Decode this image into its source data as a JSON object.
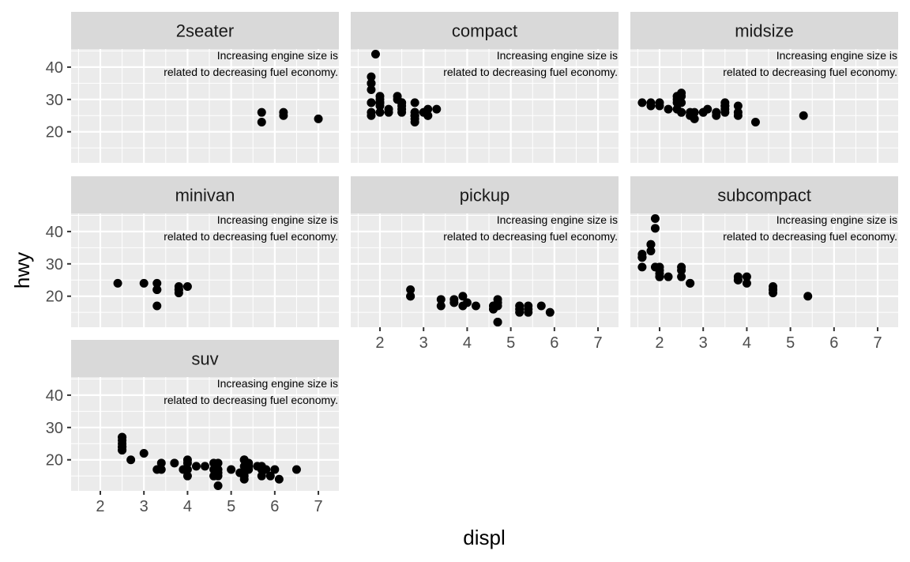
{
  "chart_data": {
    "type": "scatter",
    "xlabel": "displ",
    "ylabel": "hwy",
    "xlim": [
      1.33,
      7.47
    ],
    "ylim": [
      10.4,
      45.6
    ],
    "x_ticks": [
      2,
      3,
      4,
      5,
      6,
      7
    ],
    "y_ticks": [
      20,
      30,
      40
    ],
    "grid": true,
    "annotation": {
      "line1": "Increasing engine size is",
      "line2": "related to decreasing fuel economy."
    },
    "colors": {
      "panel_bg": "#ebebeb",
      "strip_bg": "#d9d9d9",
      "grid": "#ffffff",
      "point": "#000000"
    },
    "panels": [
      {
        "name": "2seater",
        "points": [
          [
            5.7,
            26
          ],
          [
            5.7,
            23
          ],
          [
            6.2,
            26
          ],
          [
            6.2,
            25
          ],
          [
            7.0,
            24
          ]
        ]
      },
      {
        "name": "compact",
        "points": [
          [
            1.8,
            29
          ],
          [
            1.8,
            29
          ],
          [
            2.0,
            31
          ],
          [
            2.0,
            30
          ],
          [
            2.8,
            26
          ],
          [
            2.8,
            26
          ],
          [
            3.1,
            27
          ],
          [
            1.8,
            26
          ],
          [
            1.8,
            25
          ],
          [
            2.0,
            28
          ],
          [
            2.0,
            29
          ],
          [
            2.8,
            25
          ],
          [
            2.8,
            25
          ],
          [
            3.1,
            25
          ],
          [
            3.1,
            25
          ],
          [
            2.2,
            26
          ],
          [
            2.2,
            27
          ],
          [
            2.4,
            30
          ],
          [
            2.4,
            31
          ],
          [
            3.0,
            26
          ],
          [
            1.8,
            33
          ],
          [
            1.8,
            35
          ],
          [
            1.8,
            37
          ],
          [
            1.8,
            35
          ],
          [
            2.5,
            29
          ],
          [
            2.5,
            26
          ],
          [
            2.5,
            29
          ],
          [
            2.5,
            29
          ],
          [
            2.5,
            27
          ],
          [
            1.9,
            44
          ],
          [
            2.0,
            29
          ],
          [
            2.0,
            26
          ],
          [
            2.0,
            29
          ],
          [
            2.5,
            28
          ],
          [
            2.8,
            29
          ],
          [
            2.8,
            23
          ],
          [
            2.8,
            24
          ],
          [
            2.8,
            25
          ],
          [
            3.3,
            27
          ]
        ]
      },
      {
        "name": "midsize",
        "points": [
          [
            2.8,
            26
          ],
          [
            3.1,
            27
          ],
          [
            4.2,
            23
          ],
          [
            1.6,
            29
          ],
          [
            1.8,
            29
          ],
          [
            1.8,
            28
          ],
          [
            2.0,
            29
          ],
          [
            2.0,
            28
          ],
          [
            2.4,
            27
          ],
          [
            2.4,
            30
          ],
          [
            2.4,
            31
          ],
          [
            2.5,
            32
          ],
          [
            2.5,
            31
          ],
          [
            2.5,
            26
          ],
          [
            2.5,
            29
          ],
          [
            2.7,
            26
          ],
          [
            2.7,
            25
          ],
          [
            3.0,
            26
          ],
          [
            3.3,
            25
          ],
          [
            3.5,
            28
          ],
          [
            3.5,
            29
          ],
          [
            3.5,
            26
          ],
          [
            3.5,
            27
          ],
          [
            3.8,
            26
          ],
          [
            3.8,
            28
          ],
          [
            3.8,
            25
          ],
          [
            3.3,
            26
          ],
          [
            2.8,
            24
          ],
          [
            2.2,
            27
          ],
          [
            2.5,
            26
          ],
          [
            5.3,
            25
          ],
          [
            2.4,
            29
          ],
          [
            3.0,
            26
          ],
          [
            3.5,
            28
          ]
        ]
      },
      {
        "name": "minivan",
        "points": [
          [
            2.4,
            24
          ],
          [
            3.0,
            24
          ],
          [
            3.3,
            22
          ],
          [
            3.3,
            24
          ],
          [
            3.3,
            22
          ],
          [
            3.3,
            17
          ],
          [
            3.8,
            22
          ],
          [
            3.8,
            21
          ],
          [
            3.8,
            23
          ],
          [
            3.8,
            22
          ],
          [
            4.0,
            23
          ]
        ]
      },
      {
        "name": "pickup",
        "points": [
          [
            2.7,
            20
          ],
          [
            2.7,
            20
          ],
          [
            2.7,
            22
          ],
          [
            3.4,
            17
          ],
          [
            3.4,
            19
          ],
          [
            3.7,
            18
          ],
          [
            3.7,
            19
          ],
          [
            3.9,
            17
          ],
          [
            3.9,
            20
          ],
          [
            4.2,
            17
          ],
          [
            4.6,
            17
          ],
          [
            4.6,
            16
          ],
          [
            4.7,
            17
          ],
          [
            4.7,
            12
          ],
          [
            4.7,
            19
          ],
          [
            4.7,
            18
          ],
          [
            4.7,
            12
          ],
          [
            5.2,
            17
          ],
          [
            5.2,
            15
          ],
          [
            5.4,
            17
          ],
          [
            5.4,
            15
          ],
          [
            5.4,
            16
          ],
          [
            5.7,
            17
          ],
          [
            5.9,
            15
          ],
          [
            4.0,
            18
          ],
          [
            4.6,
            17
          ],
          [
            4.6,
            16
          ],
          [
            5.2,
            16
          ]
        ]
      },
      {
        "name": "subcompact",
        "points": [
          [
            1.6,
            33
          ],
          [
            1.6,
            32
          ],
          [
            1.6,
            32
          ],
          [
            1.6,
            29
          ],
          [
            1.6,
            32
          ],
          [
            1.8,
            34
          ],
          [
            1.8,
            36
          ],
          [
            1.8,
            36
          ],
          [
            2.0,
            29
          ],
          [
            1.9,
            44
          ],
          [
            1.9,
            41
          ],
          [
            1.9,
            29
          ],
          [
            2.0,
            26
          ],
          [
            2.0,
            28
          ],
          [
            2.0,
            27
          ],
          [
            2.0,
            26
          ],
          [
            2.2,
            26
          ],
          [
            2.5,
            26
          ],
          [
            2.5,
            29
          ],
          [
            2.5,
            28
          ],
          [
            2.7,
            24
          ],
          [
            2.7,
            24
          ],
          [
            3.8,
            26
          ],
          [
            3.8,
            25
          ],
          [
            3.8,
            25
          ],
          [
            4.0,
            26
          ],
          [
            4.0,
            24
          ],
          [
            4.6,
            21
          ],
          [
            4.6,
            22
          ],
          [
            4.6,
            23
          ],
          [
            4.6,
            22
          ],
          [
            5.4,
            20
          ]
        ]
      },
      {
        "name": "suv",
        "points": [
          [
            5.3,
            20
          ],
          [
            5.3,
            15
          ],
          [
            5.3,
            20
          ],
          [
            5.7,
            17
          ],
          [
            6.0,
            17
          ],
          [
            5.7,
            15
          ],
          [
            6.5,
            17
          ],
          [
            2.5,
            26
          ],
          [
            2.5,
            25
          ],
          [
            2.5,
            27
          ],
          [
            2.5,
            23
          ],
          [
            2.5,
            27
          ],
          [
            2.5,
            24
          ],
          [
            2.5,
            24
          ],
          [
            2.5,
            23
          ],
          [
            2.7,
            20
          ],
          [
            3.0,
            22
          ],
          [
            3.3,
            17
          ],
          [
            3.4,
            17
          ],
          [
            3.4,
            19
          ],
          [
            3.7,
            19
          ],
          [
            4.0,
            20
          ],
          [
            4.0,
            19
          ],
          [
            4.0,
            17
          ],
          [
            4.0,
            15
          ],
          [
            4.6,
            19
          ],
          [
            4.6,
            17
          ],
          [
            4.7,
            17
          ],
          [
            4.7,
            15
          ],
          [
            4.7,
            12
          ],
          [
            4.7,
            19
          ],
          [
            5.0,
            17
          ],
          [
            5.3,
            16
          ],
          [
            5.3,
            14
          ],
          [
            5.4,
            18
          ],
          [
            5.4,
            17
          ],
          [
            5.7,
            18
          ],
          [
            5.9,
            15
          ],
          [
            6.1,
            14
          ],
          [
            4.2,
            18
          ],
          [
            4.4,
            18
          ],
          [
            4.6,
            15
          ],
          [
            3.9,
            17
          ],
          [
            4.7,
            16
          ],
          [
            5.2,
            16
          ],
          [
            5.3,
            18
          ],
          [
            5.4,
            19
          ],
          [
            5.6,
            18
          ],
          [
            5.8,
            17
          ]
        ]
      }
    ]
  }
}
